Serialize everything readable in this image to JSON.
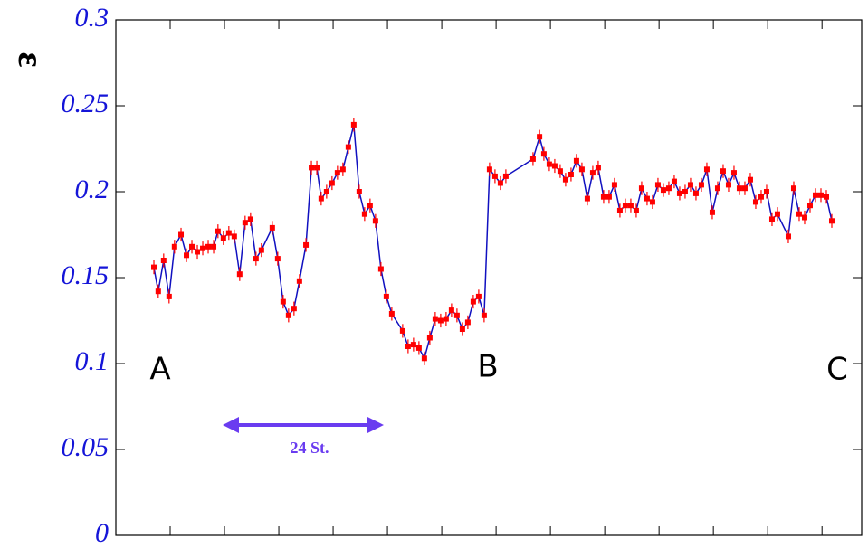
{
  "chart_data": {
    "type": "line",
    "y_label": "ε",
    "annotations": [
      "A",
      "B",
      "C",
      "24 St."
    ],
    "x": [
      7.0,
      7.8,
      8.8,
      9.8,
      10.8,
      12.0,
      13.0,
      14.0,
      15.0,
      16.0,
      17.0,
      18.0,
      18.8,
      19.8,
      20.8,
      21.8,
      22.8,
      23.8,
      24.8,
      25.8,
      26.8,
      28.8,
      29.8,
      30.8,
      31.8,
      32.8,
      33.8,
      35.0,
      36.0,
      37.0,
      37.8,
      38.8,
      39.8,
      40.8,
      41.8,
      42.8,
      43.8,
      44.8,
      45.8,
      46.8,
      47.8,
      48.8,
      49.8,
      50.8,
      52.8,
      53.8,
      54.8,
      55.8,
      56.8,
      57.8,
      58.8,
      59.8,
      60.8,
      61.8,
      62.8,
      63.8,
      64.8,
      65.8,
      66.8,
      67.8,
      68.8,
      69.8,
      70.8,
      71.8,
      76.8,
      78.0,
      78.8,
      79.8,
      80.8,
      81.8,
      82.8,
      83.8,
      84.8,
      85.8,
      86.8,
      87.8,
      88.8,
      89.8,
      90.8,
      91.8,
      92.8,
      93.8,
      94.8,
      95.8,
      96.8,
      97.8,
      98.8,
      99.8,
      100.8,
      101.8,
      102.8,
      103.8,
      104.8,
      105.8,
      106.8,
      107.8,
      108.8,
      109.8,
      110.8,
      111.8,
      112.8,
      113.8,
      114.8,
      115.8,
      116.8,
      117.8,
      118.8,
      119.8,
      120.8,
      121.8,
      123.8,
      124.8,
      125.8,
      126.8,
      127.8,
      128.8,
      129.8,
      130.8,
      131.8
    ],
    "values": [
      0.156,
      0.142,
      0.16,
      0.139,
      0.168,
      0.175,
      0.163,
      0.168,
      0.165,
      0.167,
      0.168,
      0.168,
      0.177,
      0.173,
      0.176,
      0.174,
      0.152,
      0.182,
      0.184,
      0.161,
      0.166,
      0.179,
      0.161,
      0.136,
      0.128,
      0.132,
      0.148,
      0.169,
      0.214,
      0.214,
      0.196,
      0.2,
      0.205,
      0.211,
      0.213,
      0.226,
      0.239,
      0.2,
      0.187,
      0.192,
      0.183,
      0.155,
      0.139,
      0.129,
      0.119,
      0.11,
      0.111,
      0.109,
      0.103,
      0.115,
      0.126,
      0.125,
      0.126,
      0.131,
      0.128,
      0.12,
      0.124,
      0.136,
      0.139,
      0.128,
      0.213,
      0.209,
      0.205,
      0.209,
      0.219,
      0.232,
      0.222,
      0.216,
      0.215,
      0.212,
      0.207,
      0.21,
      0.218,
      0.213,
      0.196,
      0.211,
      0.214,
      0.197,
      0.197,
      0.204,
      0.189,
      0.192,
      0.192,
      0.189,
      0.202,
      0.196,
      0.194,
      0.204,
      0.201,
      0.202,
      0.206,
      0.199,
      0.2,
      0.204,
      0.199,
      0.204,
      0.213,
      0.188,
      0.202,
      0.212,
      0.204,
      0.211,
      0.202,
      0.202,
      0.207,
      0.194,
      0.197,
      0.2,
      0.184,
      0.187,
      0.174,
      0.202,
      0.187,
      0.185,
      0.192,
      0.198,
      0.198,
      0.197,
      0.183
    ],
    "error": 0.004,
    "color": "#1010c0",
    "marker_color": "#ff0000",
    "arrow_color": "#6a3cf0",
    "tick_label_color": "#1515d8",
    "xlim": [
      0,
      137.3
    ],
    "xticks": [
      10,
      20,
      30,
      40,
      50,
      60,
      70,
      80,
      90,
      100,
      110,
      120,
      130
    ],
    "ylim": [
      0,
      0.3
    ],
    "yticks": [
      0,
      0.05,
      0.1,
      0.15,
      0.2,
      0.25,
      0.3
    ]
  }
}
